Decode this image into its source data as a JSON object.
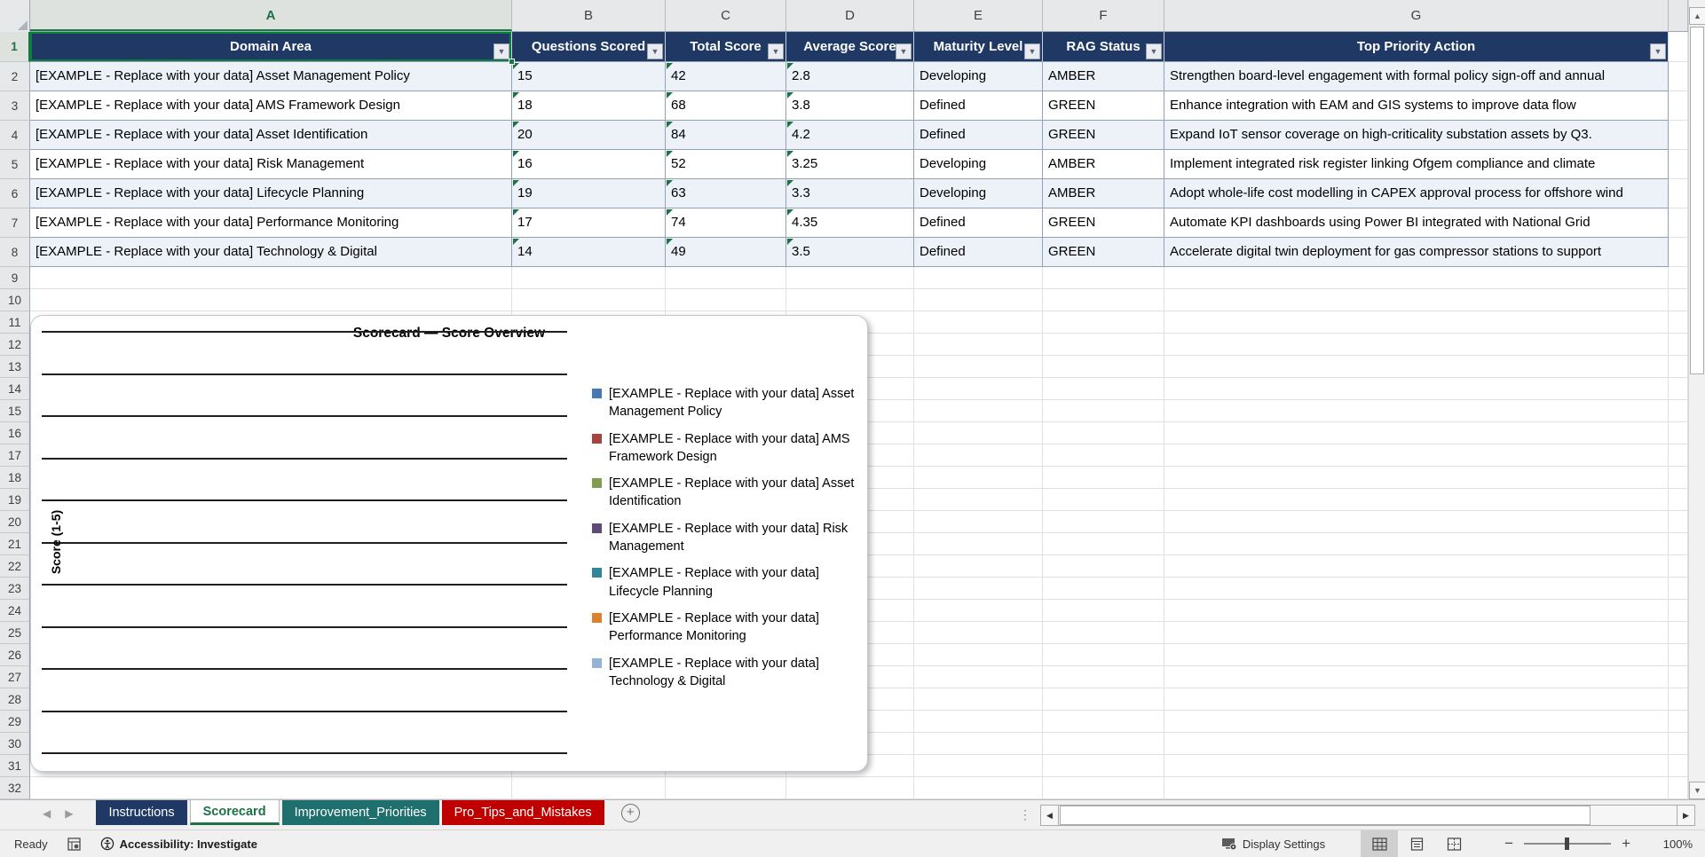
{
  "grid": {
    "column_letters": [
      "A",
      "B",
      "C",
      "D",
      "E",
      "F",
      "G"
    ],
    "row_count": 32,
    "selected_column": "A",
    "selected_row": "1"
  },
  "table": {
    "headers": [
      "Domain Area",
      "Questions Scored",
      "Total Score",
      "Average Score",
      "Maturity Level",
      "RAG Status",
      "Top Priority Action"
    ],
    "rows": [
      [
        "[EXAMPLE - Replace with your data] Asset Management Policy",
        "15",
        "42",
        "2.8",
        "Developing",
        "AMBER",
        "Strengthen board-level engagement with formal policy sign-off and annual"
      ],
      [
        "[EXAMPLE - Replace with your data] AMS Framework Design",
        "18",
        "68",
        "3.8",
        "Defined",
        "GREEN",
        "Enhance integration with EAM and GIS systems to improve data flow"
      ],
      [
        "[EXAMPLE - Replace with your data] Asset Identification",
        "20",
        "84",
        "4.2",
        "Defined",
        "GREEN",
        "Expand IoT sensor coverage on high-criticality substation assets by Q3."
      ],
      [
        "[EXAMPLE - Replace with your data] Risk Management",
        "16",
        "52",
        "3.25",
        "Developing",
        "AMBER",
        "Implement integrated risk register linking Ofgem compliance and climate"
      ],
      [
        "[EXAMPLE - Replace with your data] Lifecycle Planning",
        "19",
        "63",
        "3.3",
        "Developing",
        "AMBER",
        "Adopt whole-life cost modelling in CAPEX approval process for offshore wind"
      ],
      [
        "[EXAMPLE - Replace with your data] Performance Monitoring",
        "17",
        "74",
        "4.35",
        "Defined",
        "GREEN",
        "Automate KPI dashboards using Power BI integrated with National Grid"
      ],
      [
        "[EXAMPLE - Replace with your data] Technology & Digital",
        "14",
        "49",
        "3.5",
        "Defined",
        "GREEN",
        "Accelerate digital twin deployment for gas compressor stations to support"
      ]
    ]
  },
  "chart_data": {
    "type": "bar",
    "title": "Scorecard — Score Overview",
    "ylabel": "Score (1-5)",
    "ylim": [
      1,
      5
    ],
    "gridline_count": 11,
    "legend_position": "right",
    "plot_rendered": "empty — gridlines only, no bars drawn",
    "series": [
      {
        "name": "[EXAMPLE - Replace with your data] Asset Management Policy",
        "color": "#4779B3",
        "values": []
      },
      {
        "name": "[EXAMPLE - Replace with your data] AMS Framework Design",
        "color": "#A5443F",
        "values": []
      },
      {
        "name": "[EXAMPLE - Replace with your data] Asset Identification",
        "color": "#7E9D4E",
        "values": []
      },
      {
        "name": "[EXAMPLE - Replace with your data] Risk Management",
        "color": "#5F497A",
        "values": []
      },
      {
        "name": "[EXAMPLE - Replace with your data] Lifecycle Planning",
        "color": "#31859B",
        "values": []
      },
      {
        "name": "[EXAMPLE - Replace with your data] Performance Monitoring",
        "color": "#DB8230",
        "values": []
      },
      {
        "name": "[EXAMPLE - Replace with your data] Technology & Digital",
        "color": "#95B3D7",
        "values": []
      }
    ]
  },
  "sheet_tabs": {
    "tabs": [
      {
        "label": "Instructions",
        "bg": "#1F3864",
        "fg": "#FFFFFF",
        "active": false
      },
      {
        "label": "Scorecard",
        "bg": "#FFFFFF",
        "fg": "#1E7145",
        "active": true
      },
      {
        "label": "Improvement_Priorities",
        "bg": "#1F6F6F",
        "fg": "#FFFFFF",
        "active": false
      },
      {
        "label": "Pro_Tips_and_Mistakes",
        "bg": "#C00000",
        "fg": "#FFFFFF",
        "active": false
      }
    ]
  },
  "status_bar": {
    "mode": "Ready",
    "accessibility": "Accessibility: Investigate",
    "display_settings": "Display Settings",
    "zoom": "100%"
  },
  "colors": {
    "header_bg": "#1F3864",
    "band_row": "#EDF1F8",
    "selection_green": "#107C41",
    "error_triangle": "#1E7145"
  }
}
